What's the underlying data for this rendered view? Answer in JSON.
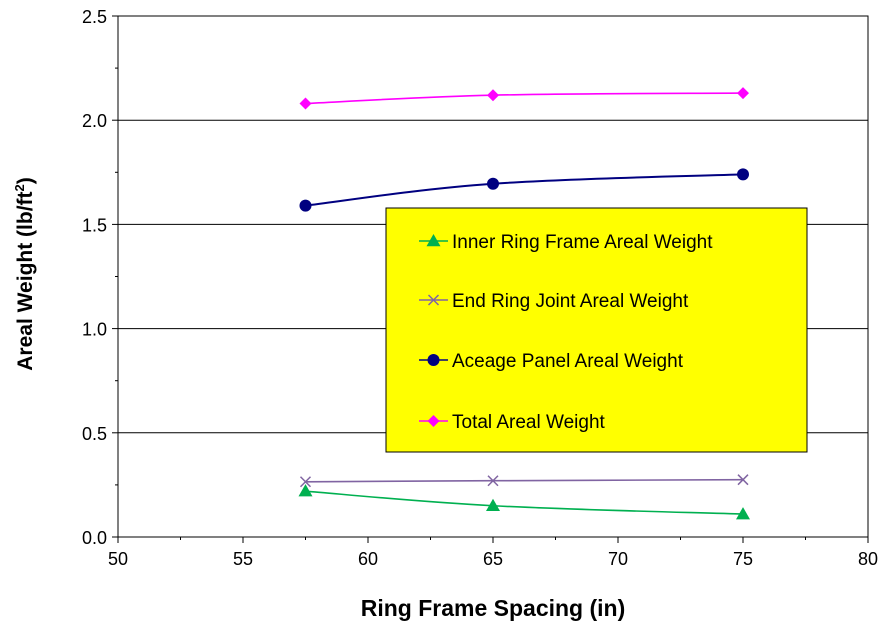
{
  "chart_data": {
    "type": "line",
    "xlabel": "Ring Frame Spacing (in)",
    "ylabel_main": "Areal Weight  (lb/ft",
    "ylabel_sup": "2",
    "ylabel_end": ")",
    "xlim": [
      50,
      80
    ],
    "ylim": [
      0.0,
      2.5
    ],
    "x_ticks": [
      50,
      55,
      60,
      65,
      70,
      75,
      80
    ],
    "x_tick_labels": [
      "50",
      "55",
      "60",
      "65",
      "70",
      "75",
      "80"
    ],
    "y_ticks": [
      0.0,
      0.5,
      1.0,
      1.5,
      2.0,
      2.5
    ],
    "y_tick_labels": [
      "0.0",
      "0.5",
      "1.0",
      "1.5",
      "2.0",
      "2.5"
    ],
    "grid": "horizontal",
    "legend_position": "center-right",
    "legend_background": "#ffff00",
    "series": [
      {
        "name": "Inner Ring Frame Areal Weight",
        "marker": "triangle",
        "color": "#00b050",
        "x": [
          57.5,
          65,
          75
        ],
        "y": [
          0.22,
          0.15,
          0.11
        ]
      },
      {
        "name": "End Ring Joint Areal Weight",
        "marker": "x",
        "color": "#8064a2",
        "x": [
          57.5,
          65,
          75
        ],
        "y": [
          0.265,
          0.27,
          0.275
        ]
      },
      {
        "name": "Aceage Panel Areal Weight",
        "marker": "circle",
        "color": "#000080",
        "x": [
          57.5,
          65,
          75
        ],
        "y": [
          1.59,
          1.695,
          1.74
        ]
      },
      {
        "name": "Total Areal Weight",
        "marker": "diamond",
        "color": "#ff00ff",
        "x": [
          57.5,
          65,
          75
        ],
        "y": [
          2.08,
          2.12,
          2.13
        ]
      }
    ]
  }
}
